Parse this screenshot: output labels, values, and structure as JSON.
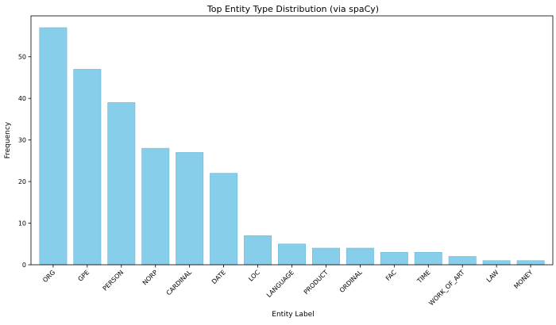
{
  "chart_data": {
    "type": "bar",
    "title": "Top Entity Type Distribution (via spaCy)",
    "xlabel": "Entity Label",
    "ylabel": "Frequency",
    "categories": [
      "ORG",
      "GPE",
      "PERSON",
      "NORP",
      "CARDINAL",
      "DATE",
      "LOC",
      "LANGUAGE",
      "PRODUCT",
      "ORDINAL",
      "FAC",
      "TIME",
      "WORK_OF_ART",
      "LAW",
      "MONEY"
    ],
    "values": [
      57,
      47,
      39,
      28,
      27,
      22,
      7,
      5,
      4,
      4,
      3,
      3,
      2,
      1,
      1
    ],
    "ylim": [
      0,
      59.85
    ],
    "yticks": [
      0,
      10,
      20,
      30,
      40,
      50
    ],
    "grid": false,
    "bar_color": "#87ceeb",
    "bar_edge_color": "#73b6d6"
  }
}
